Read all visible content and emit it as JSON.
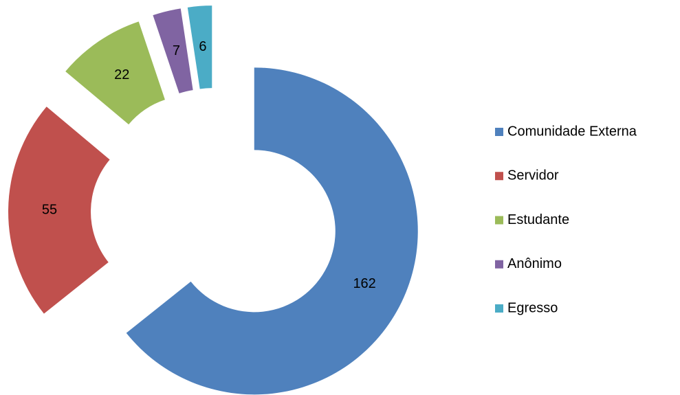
{
  "chart_data": {
    "type": "donut",
    "categories": [
      "Comunidade Externa",
      "Servidor",
      "Estudante",
      "Anônimo",
      "Egresso"
    ],
    "values": [
      162,
      55,
      22,
      7,
      6
    ],
    "colors": [
      "#4f81bd",
      "#c0504d",
      "#9bbb59",
      "#8064a2",
      "#4bacc6"
    ],
    "legend": "right"
  }
}
